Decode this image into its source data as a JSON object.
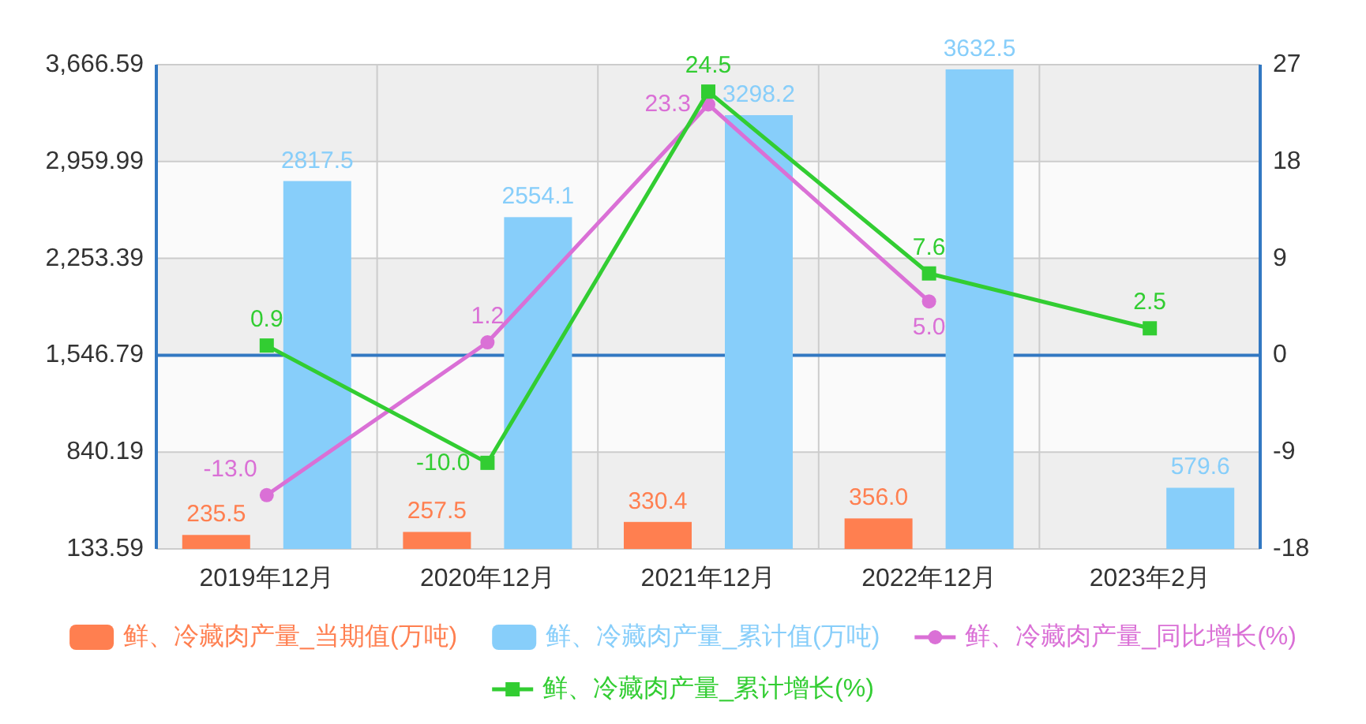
{
  "chart_data": {
    "type": "bar",
    "categories": [
      "2019年12月",
      "2020年12月",
      "2021年12月",
      "2022年12月",
      "2023年2月"
    ],
    "series": [
      {
        "name": "鲜、冷藏肉产量_当期值(万吨)",
        "color": "#ff7f50",
        "values": [
          235.5,
          257.5,
          330.4,
          356.0,
          null
        ],
        "value_labels": [
          "235.5",
          "257.5",
          "330.4",
          "356.0",
          null
        ]
      },
      {
        "name": "鲜、冷藏肉产量_累计值(万吨)",
        "color": "#87cefa",
        "values": [
          2817.5,
          2554.1,
          3298.2,
          3632.5,
          579.6
        ],
        "value_labels": [
          "2817.5",
          "2554.1",
          "3298.2",
          "3632.5",
          "579.6"
        ]
      },
      {
        "name": "鲜、冷藏肉产量_同比增长(%)",
        "type": "line",
        "axis": "y2",
        "color": "#da70d6",
        "marker": "circle",
        "values": [
          -13.0,
          1.2,
          23.3,
          5.0,
          null
        ],
        "value_labels": [
          "-13.0",
          "1.2",
          "23.3",
          "5.0",
          null
        ]
      },
      {
        "name": "鲜、冷藏肉产量_累计增长(%)",
        "type": "line",
        "axis": "y2",
        "color": "#32cd32",
        "marker": "square",
        "values": [
          0.9,
          -10.0,
          24.5,
          7.6,
          2.5
        ],
        "value_labels": [
          "0.9",
          "-10.0",
          "24.5",
          "7.6",
          "2.5"
        ]
      }
    ],
    "ylim": [
      133.59,
      3666.59
    ],
    "yticks": [
      133.59,
      840.19,
      {
        "value": 1546.79,
        "label": "1,546.79"
      },
      {
        "value": 2253.39,
        "label": "2,253.39"
      },
      {
        "value": 2959.99,
        "label": "2,959.99"
      },
      {
        "value": 3666.59,
        "label": "3,666.59"
      }
    ],
    "y2lim": [
      -18,
      27
    ],
    "y2ticks": [
      -18,
      -9,
      0,
      9,
      18,
      27
    ],
    "ref_lines": [
      {
        "axis": "y2",
        "value": 0,
        "color": "#3278c2"
      }
    ],
    "grid": true,
    "legend": "bottom"
  }
}
